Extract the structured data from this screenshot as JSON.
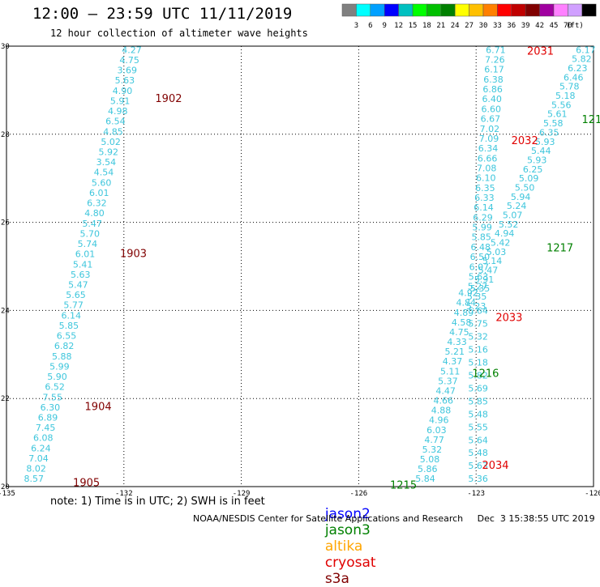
{
  "header": {
    "title": "12:00 – 23:59 UTC 11/11/2019",
    "subtitle": "12 hour collection of altimeter wave heights"
  },
  "scale": {
    "unit": "(ft)",
    "ticks": [
      "3",
      "6",
      "9",
      "12",
      "15",
      "18",
      "21",
      "24",
      "27",
      "30",
      "33",
      "36",
      "39",
      "42",
      "45",
      "70"
    ],
    "colors": [
      "#808080",
      "#00ffff",
      "#00a0ff",
      "#0000ff",
      "#00c0c0",
      "#00ff00",
      "#00c000",
      "#008000",
      "#ffff00",
      "#ffc000",
      "#ff8000",
      "#ff0000",
      "#c00000",
      "#800000",
      "#a000a0",
      "#ff80ff",
      "#d0a0ff",
      "#000000"
    ]
  },
  "chart_data": {
    "type": "scatter",
    "x_range": [
      -135,
      -120
    ],
    "y_range": [
      20,
      30
    ],
    "x_ticks": [
      "-135",
      "-132",
      "-129",
      "-126",
      "-123",
      "-120"
    ],
    "y_ticks": [
      "20",
      "22",
      "24",
      "26",
      "28",
      "30"
    ],
    "tracks": [
      {
        "lon0": -131.8,
        "lat0": 29.92,
        "lon1": -134.3,
        "lat1": 20.18,
        "color": "#3ec6dc",
        "values": [
          "4.27",
          "4.75",
          "3.69",
          "5.63",
          "4.90",
          "5.91",
          "4.98",
          "6.54",
          "4.85",
          "5.02",
          "5.92",
          "3.54",
          "4.54",
          "5.60",
          "6.01",
          "6.32",
          "4.80",
          "5.47",
          "5.70",
          "5.74",
          "6.01",
          "5.41",
          "5.63",
          "5.47",
          "5.65",
          "5.77",
          "6.14",
          "5.85",
          "6.55",
          "6.82",
          "5.88",
          "5.99",
          "5.90",
          "6.52",
          "7.55",
          "6.30",
          "6.89",
          "7.45",
          "6.08",
          "6.24",
          "7.04",
          "8.02",
          "8.57"
        ]
      },
      {
        "lon0": -122.5,
        "lat0": 29.92,
        "lon1": -123.0,
        "lat1": 24.1,
        "color": "#3ec6dc",
        "values": [
          "6.71",
          "7.26",
          "6.17",
          "6.38",
          "6.86",
          "6.40",
          "6.60",
          "6.67",
          "7.02",
          "7.09",
          "6.34",
          "6.66",
          "7.08",
          "6.10",
          "6.35",
          "6.33",
          "6.14",
          "6.29",
          "5.99",
          "5.85",
          "6.48",
          "6.50",
          "6.07",
          "5.63",
          "5.27",
          "5.35",
          "5.23"
        ]
      },
      {
        "lon0": -120.2,
        "lat0": 29.92,
        "lon1": -122.9,
        "lat1": 24.5,
        "color": "#3ec6dc",
        "values": [
          "6.17",
          "5.82",
          "6.23",
          "6.46",
          "5.78",
          "5.18",
          "5.56",
          "5.61",
          "5.58",
          "6.35",
          "5.93",
          "5.44",
          "5.93",
          "6.25",
          "5.09",
          "5.50",
          "5.94",
          "5.24",
          "5.07",
          "5.52",
          "4.94",
          "5.42",
          "5.03",
          "5.14",
          "5.47",
          "5.91",
          "5.35"
        ]
      },
      {
        "lon0": -123.2,
        "lat0": 24.4,
        "lon1": -124.3,
        "lat1": 20.18,
        "color": "#3ec6dc",
        "values": [
          "4.92",
          "4.84",
          "4.89",
          "4.58",
          "4.75",
          "4.33",
          "5.21",
          "4.37",
          "5.11",
          "5.37",
          "4.47",
          "4.66",
          "4.88",
          "4.96",
          "6.03",
          "4.77",
          "5.32",
          "5.08",
          "5.86",
          "5.84"
        ]
      },
      {
        "lon0": -122.95,
        "lat0": 24.0,
        "lon1": -122.95,
        "lat1": 20.18,
        "color": "#3ec6dc",
        "values": [
          "5.64",
          "5.75",
          "5.32",
          "5.16",
          "5.18",
          "5.82",
          "5.69",
          "5.85",
          "5.48",
          "5.55",
          "5.64",
          "5.48",
          "5.63",
          "5.36"
        ]
      }
    ],
    "labels": [
      {
        "text": "1902",
        "lon": -131.2,
        "lat": 28.82,
        "color": "#800000"
      },
      {
        "text": "1903",
        "lon": -132.1,
        "lat": 25.3,
        "color": "#800000"
      },
      {
        "text": "1904",
        "lon": -133.0,
        "lat": 21.83,
        "color": "#800000"
      },
      {
        "text": "1905",
        "lon": -133.3,
        "lat": 20.1,
        "color": "#800000"
      },
      {
        "text": "2031",
        "lon": -121.7,
        "lat": 29.9,
        "color": "#e00000"
      },
      {
        "text": "2032",
        "lon": -122.1,
        "lat": 27.87,
        "color": "#e00000"
      },
      {
        "text": "2033",
        "lon": -122.5,
        "lat": 23.85,
        "color": "#e00000"
      },
      {
        "text": "2034",
        "lon": -122.85,
        "lat": 20.5,
        "color": "#e00000"
      },
      {
        "text": "1215",
        "lon": -125.2,
        "lat": 20.05,
        "color": "#008000"
      },
      {
        "text": "1216",
        "lon": -123.1,
        "lat": 22.58,
        "color": "#008000"
      },
      {
        "text": "1217",
        "lon": -121.2,
        "lat": 25.43,
        "color": "#008000"
      },
      {
        "text": "121",
        "lon": -120.3,
        "lat": 28.35,
        "color": "#008000"
      }
    ]
  },
  "legend": {
    "note": "note:  1) Time is in UTC;  2) SWH is in feet",
    "satellites": [
      {
        "name": "jason2",
        "color": "#0000ff"
      },
      {
        "name": "jason3",
        "color": "#008000"
      },
      {
        "name": "altika",
        "color": "#ffa500"
      },
      {
        "name": "cryosat",
        "color": "#e00000"
      },
      {
        "name": "s3a",
        "color": "#800000"
      }
    ]
  },
  "footer": "NOAA/NESDIS Center for Satellite Applications and Research     Dec  3 15:38:55 UTC 2019"
}
